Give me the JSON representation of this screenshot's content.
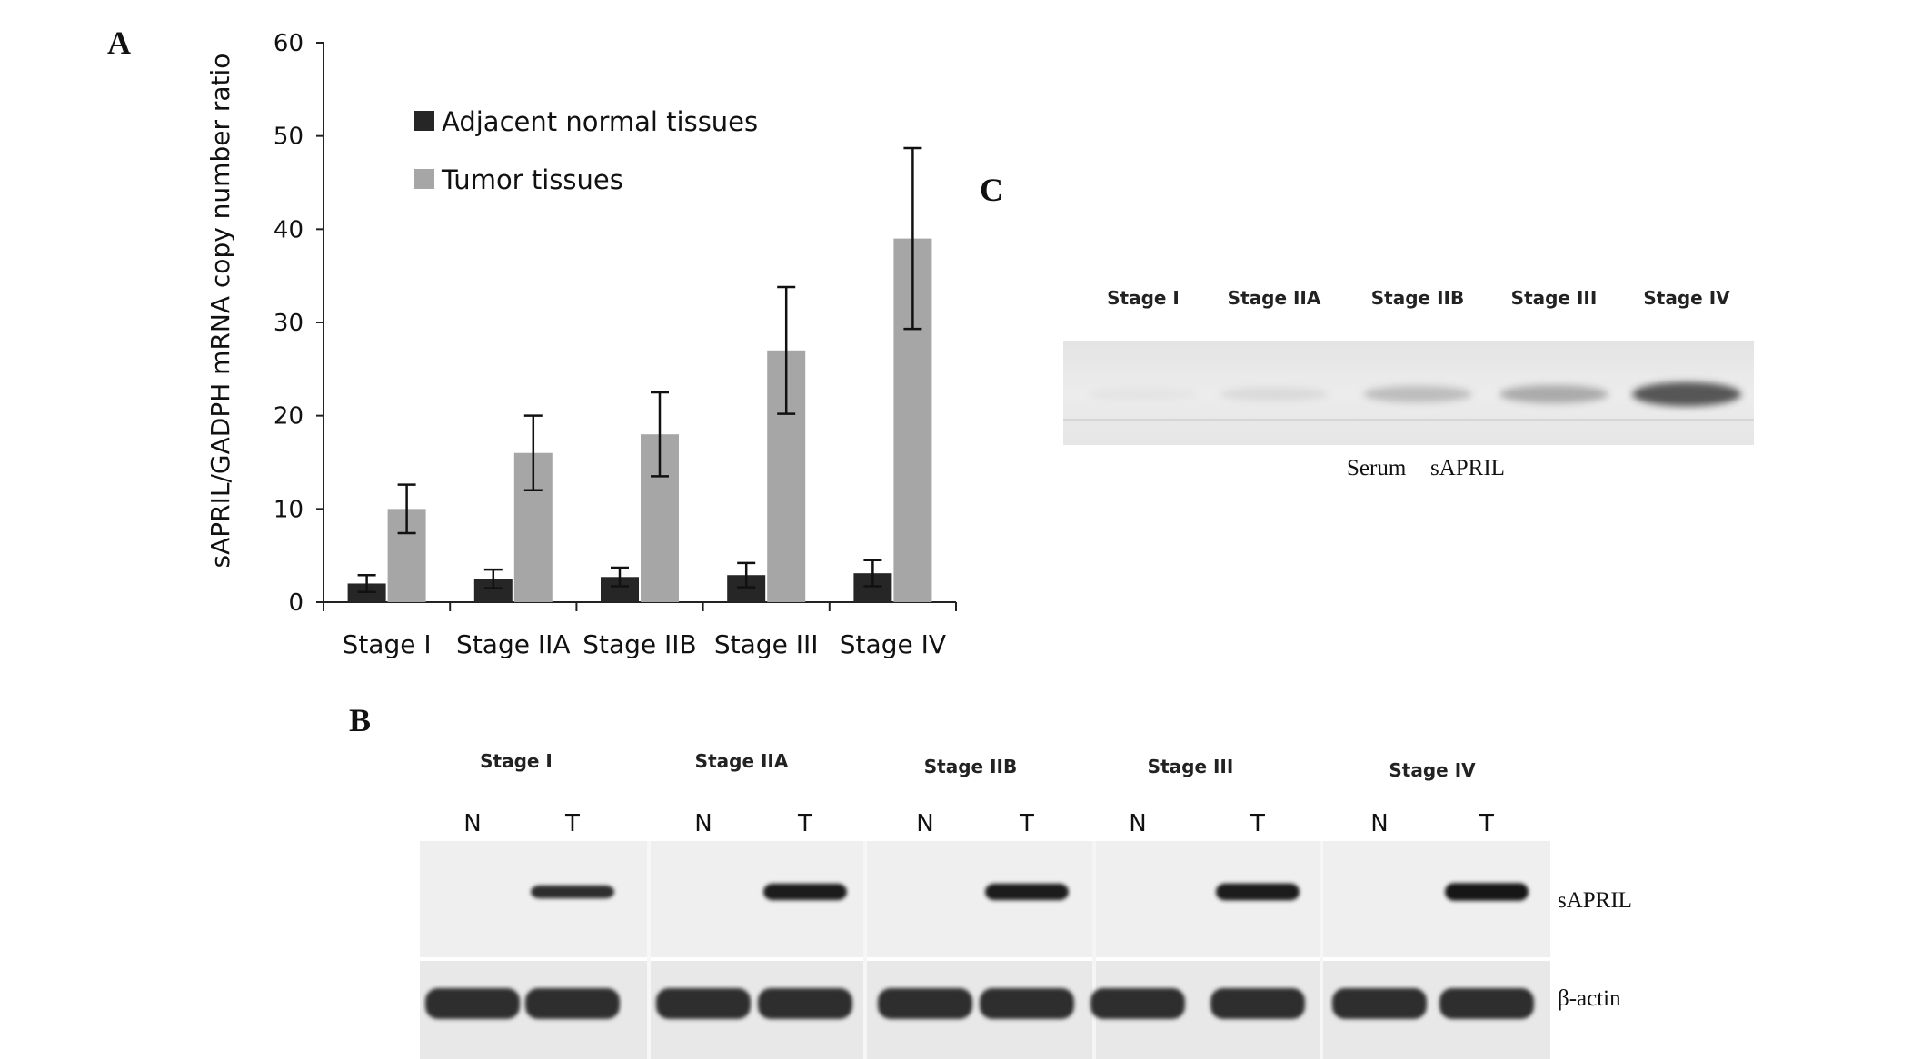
{
  "panels": {
    "a": "A",
    "b": "B",
    "c": "C"
  },
  "chart_data": {
    "type": "bar",
    "categories": [
      "Stage I",
      "Stage IIA",
      "Stage IIB",
      "Stage III",
      "Stage IV"
    ],
    "ylabel": "sAPRIL/GADPH mRNA copy number ratio",
    "ylim": [
      0,
      60
    ],
    "yticks": [
      0,
      10,
      20,
      30,
      40,
      50,
      60
    ],
    "legend_position": "top-left",
    "grid": false,
    "series": [
      {
        "name": "Adjacent normal tissues",
        "color": "#262626",
        "values": [
          2.0,
          2.5,
          2.7,
          2.9,
          3.1
        ],
        "errors": [
          0.9,
          1.0,
          1.0,
          1.3,
          1.4
        ]
      },
      {
        "name": "Tumor tissues",
        "color": "#a6a6a6",
        "values": [
          10.0,
          16.0,
          18.0,
          27.0,
          39.0
        ],
        "errors": [
          2.6,
          4.0,
          4.5,
          6.8,
          9.7
        ]
      }
    ]
  },
  "blot_b": {
    "stages": [
      "Stage I",
      "Stage IIA",
      "Stage IIB",
      "Stage III",
      "Stage IV"
    ],
    "lane_labels": [
      "N",
      "T"
    ],
    "band_labels": {
      "top": "sAPRIL",
      "bottom": "β-actin"
    },
    "tumor_band_intensity": [
      0.55,
      0.85,
      0.85,
      0.9,
      0.95
    ]
  },
  "blot_c": {
    "stages": [
      "Stage I",
      "Stage IIA",
      "Stage IIB",
      "Stage III",
      "Stage IV"
    ],
    "caption_left": "Serum",
    "caption_right": "sAPRIL",
    "band_intensity": [
      0.05,
      0.15,
      0.35,
      0.45,
      0.8
    ]
  }
}
